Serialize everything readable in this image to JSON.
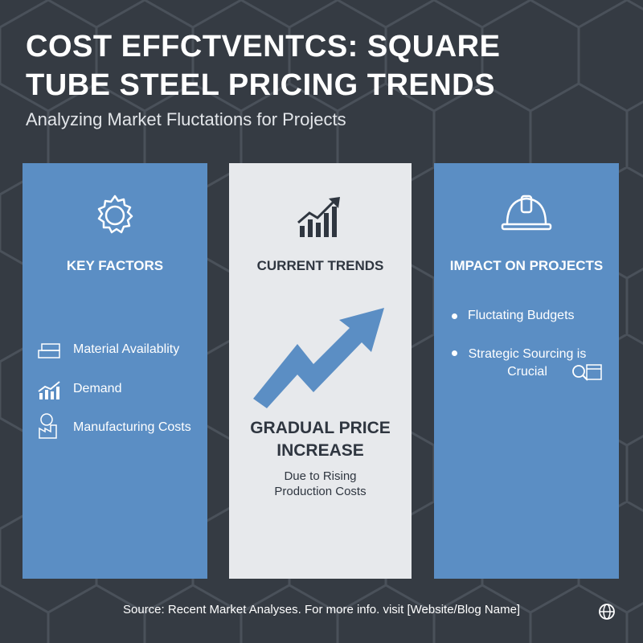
{
  "header": {
    "title": "COST EFFCTVENTCS: SQUARE TUBE STEEL PRICING TRENDS",
    "subtitle": "Analyzing Market Fluctations for Projects"
  },
  "columns": [
    {
      "heading": "KEY FACTORS",
      "items": [
        "Material Availablity",
        "Demand",
        "Manufacturing Costs"
      ]
    },
    {
      "heading": "CURRENT TRENDS",
      "headline": "GRADUAL PRICE INCREASE",
      "note": "Due to Rising Production Costs"
    },
    {
      "heading": "IMPACT ON PROJECTS",
      "items": [
        "Fluctating Budgets",
        "Strategic Sourcing is Crucial"
      ]
    }
  ],
  "footer": {
    "source": "Source: Recent Market Analyses. For more info. visit [Website/Blog Name]"
  }
}
